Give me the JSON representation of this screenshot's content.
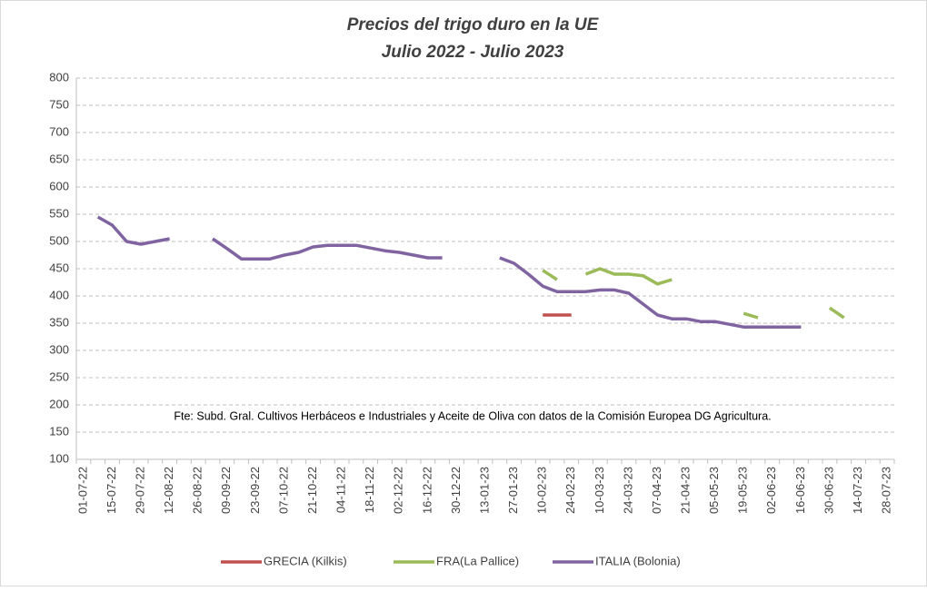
{
  "chart_data": {
    "type": "line",
    "title": "Precios del trigo duro en la UE",
    "subtitle": "Julio 2022 - Julio 2023",
    "annotation": "Fte: Subd. Gral. Cultivos Herbáceos e Industriales y Aceite de Oliva con datos de la Comisión Europea DG Agricultura.",
    "categories": [
      "01-07-22",
      null,
      "15-07-22",
      null,
      "29-07-22",
      null,
      "12-08-22",
      null,
      "26-08-22",
      null,
      "09-09-22",
      null,
      "23-09-22",
      null,
      "07-10-22",
      null,
      "21-10-22",
      null,
      "04-11-22",
      null,
      "18-11-22",
      null,
      "02-12-22",
      null,
      "16-12-22",
      null,
      "30-12-22",
      null,
      "13-01-23",
      null,
      "27-01-23",
      null,
      "10-02-23",
      null,
      "24-02-23",
      null,
      "10-03-23",
      null,
      "24-03-23",
      null,
      "07-04-23",
      null,
      "21-04-23",
      null,
      "05-05-23",
      null,
      "19-05-23",
      null,
      "02-06-23",
      null,
      "16-06-23",
      null,
      "30-06-23",
      null,
      "14-07-23",
      null,
      "28-07-23"
    ],
    "series": [
      {
        "name": "GRECIA (Kilkis)",
        "color": "#c0504d",
        "values": [
          null,
          null,
          null,
          null,
          null,
          null,
          null,
          null,
          null,
          null,
          null,
          null,
          null,
          null,
          null,
          null,
          null,
          null,
          null,
          null,
          null,
          null,
          null,
          null,
          null,
          null,
          null,
          null,
          null,
          null,
          null,
          null,
          365,
          365,
          365,
          null,
          null,
          null,
          null,
          null,
          null,
          null,
          null,
          null,
          null,
          null,
          null,
          null,
          null,
          null,
          null,
          null,
          null,
          null,
          null,
          null,
          null
        ]
      },
      {
        "name": "FRA(La Pallice)",
        "color": "#9bbb59",
        "values": [
          null,
          null,
          null,
          null,
          null,
          null,
          null,
          null,
          null,
          null,
          null,
          null,
          null,
          null,
          null,
          null,
          null,
          null,
          null,
          null,
          null,
          null,
          null,
          null,
          null,
          null,
          null,
          null,
          null,
          null,
          null,
          null,
          447,
          430,
          null,
          440,
          450,
          440,
          440,
          437,
          422,
          430,
          null,
          null,
          null,
          null,
          368,
          360,
          null,
          null,
          null,
          null,
          378,
          360,
          null,
          null,
          null
        ]
      },
      {
        "name": "ITALIA (Bolonia)",
        "color": "#8064a2",
        "values": [
          null,
          545,
          530,
          500,
          495,
          500,
          505,
          null,
          null,
          505,
          487,
          468,
          468,
          468,
          475,
          480,
          490,
          493,
          493,
          493,
          488,
          483,
          480,
          475,
          470,
          470,
          null,
          null,
          null,
          470,
          460,
          440,
          418,
          408,
          408,
          408,
          411,
          411,
          405,
          385,
          365,
          358,
          358,
          353,
          353,
          348,
          343,
          343,
          343,
          343,
          343,
          null,
          null,
          null,
          null,
          null,
          null
        ]
      }
    ],
    "ylim": [
      100,
      800
    ],
    "yticks": [
      100,
      150,
      200,
      250,
      300,
      350,
      400,
      450,
      500,
      550,
      600,
      650,
      700,
      750,
      800
    ],
    "grid": true,
    "legend": "bottom"
  }
}
